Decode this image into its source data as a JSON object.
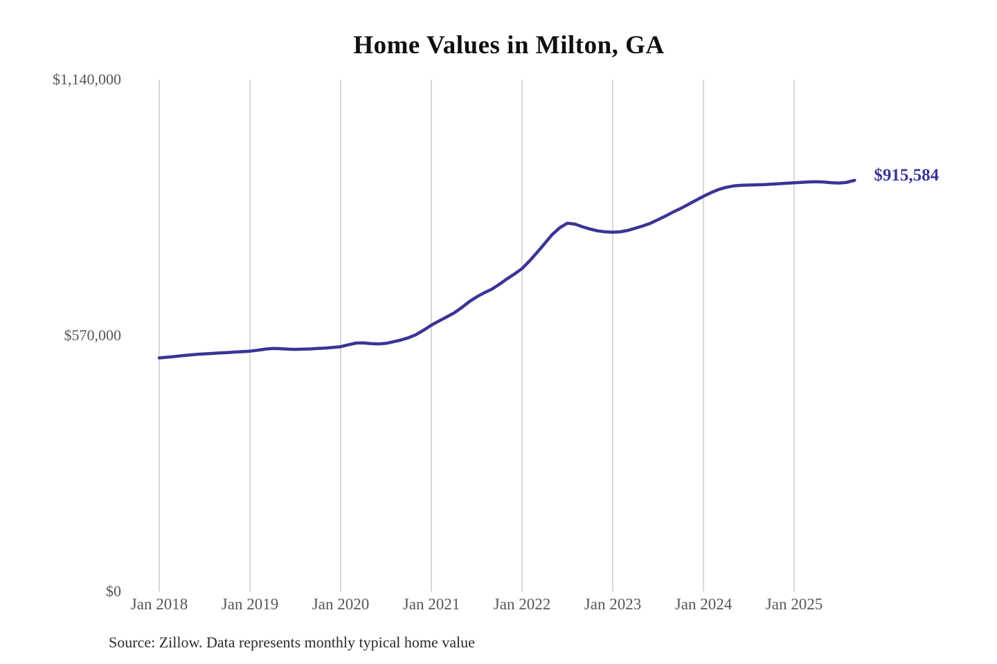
{
  "title": "Home Values in Milton, GA",
  "end_label": "$915,584",
  "source": "Source: Zillow. Data represents monthly typical home value",
  "colors": {
    "line": "#3a3496",
    "grid": "#cccccc",
    "axis_text": "#54575a",
    "title_text": "#101010",
    "end_label_text": "#3a3496",
    "source_text": "#2b2b2b",
    "background": "#ffffff"
  },
  "chart_data": {
    "type": "line",
    "title": "Home Values in Milton, GA",
    "xlabel": "",
    "ylabel": "",
    "grid": "vertical-only",
    "legend": "none",
    "ylim": [
      0,
      1140000
    ],
    "y_ticks": [
      {
        "label": "$0",
        "value": 0
      },
      {
        "label": "$570,000",
        "value": 570000
      },
      {
        "label": "$1,140,000",
        "value": 1140000
      }
    ],
    "x_tick_labels": [
      "Jan 2018",
      "Jan 2019",
      "Jan 2020",
      "Jan 2021",
      "Jan 2022",
      "Jan 2023",
      "Jan 2024",
      "Jan 2025"
    ],
    "start_month": "2018-01",
    "end_month": "2025-09",
    "end_value_label": "$915,584",
    "series": [
      {
        "name": "Monthly typical home value",
        "values": [
          520000,
          521500,
          523000,
          525000,
          526500,
          528000,
          529000,
          530000,
          531000,
          532000,
          533000,
          534000,
          535000,
          537000,
          539500,
          541000,
          540500,
          539500,
          539000,
          539500,
          540000,
          541000,
          542000,
          543500,
          545000,
          549000,
          553000,
          553500,
          552000,
          551000,
          552500,
          556000,
          560000,
          565000,
          572000,
          582000,
          593000,
          602000,
          611000,
          620000,
          632000,
          645000,
          656000,
          665000,
          673000,
          684000,
          696000,
          707000,
          719000,
          736000,
          755000,
          775000,
          795000,
          810000,
          820000,
          818000,
          812000,
          807000,
          803000,
          801000,
          800000,
          801000,
          804000,
          809000,
          814000,
          820000,
          828000,
          836000,
          845000,
          853000,
          862000,
          871000,
          880000,
          888000,
          895000,
          900000,
          903000,
          904500,
          905000,
          905500,
          906000,
          907000,
          908000,
          909000,
          910000,
          911000,
          912000,
          912500,
          911500,
          910000,
          909500,
          911000,
          915584
        ]
      }
    ]
  }
}
